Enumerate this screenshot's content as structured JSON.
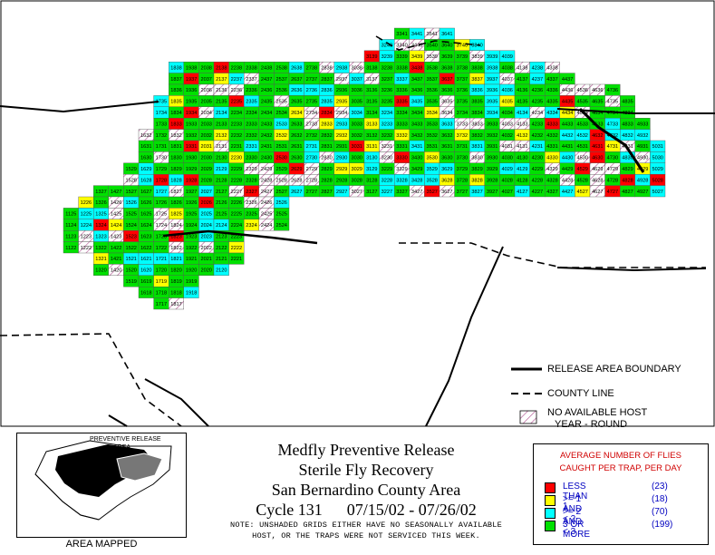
{
  "map_title": {
    "line1": "Medfly Preventive Release",
    "line2": "Sterile Fly Recovery",
    "line3": "San Bernardino County Area",
    "cycle": "Cycle 131",
    "dates": "07/15/02 - 07/26/02"
  },
  "note": {
    "line1": "NOTE: UNSHADED GRIDS EITHER HAVE NO SEASONALLY AVAILABLE",
    "line2": "HOST, OR THE TRAPS WERE NOT SERVICED THIS WEEK."
  },
  "line_key": {
    "release_boundary": "RELEASE AREA BOUNDARY",
    "county_line": "COUNTY LINE",
    "no_host_line1": "NO AVAILABLE HOST",
    "no_host_line2": "YEAR - ROUND"
  },
  "legend": {
    "title_line1": "AVERAGE NUMBER OF FLIES",
    "title_line2": "CAUGHT PER TRAP, PER DAY",
    "items": [
      {
        "label": "LESS THAN 1",
        "count": "(23)",
        "color": "#ff0000"
      },
      {
        "label": ">= 1 AND < 2",
        "count": "(18)",
        "color": "#ffff00"
      },
      {
        "label": ">= 2 AND < 3",
        "count": "(70)",
        "color": "#00ffff"
      },
      {
        "label": "3 OR MORE",
        "count": "(199)",
        "color": "#00e000"
      }
    ]
  },
  "inset": {
    "caption": "AREA MAPPED",
    "release_area_label_line1": "PREVENTIVE RELEASE",
    "release_area_label_line2": "AREA"
  },
  "colors": {
    "red": "#ff0000",
    "yellow": "#ffff00",
    "cyan": "#00ffff",
    "green": "#00e000",
    "hatch": "#b05090"
  },
  "grid": {
    "min_col": 11,
    "max_col": 50,
    "min_row": 17,
    "max_row": 41,
    "rows": [
      {
        "row": 41,
        "c0": 33,
        "c1": 36
      },
      {
        "row": 40,
        "c0": 32,
        "c1": 38
      },
      {
        "row": 39,
        "c0": 31,
        "c1": 40
      },
      {
        "row": 38,
        "c0": 18,
        "c1": 43
      },
      {
        "row": 37,
        "c0": 18,
        "c1": 44
      },
      {
        "row": 36,
        "c0": 18,
        "c1": 47
      },
      {
        "row": 35,
        "c0": 17,
        "c1": 48
      },
      {
        "row": 34,
        "c0": 17,
        "c1": 48
      },
      {
        "row": 33,
        "c0": 17,
        "c1": 49
      },
      {
        "row": 32,
        "c0": 16,
        "c1": 49
      },
      {
        "row": 31,
        "c0": 16,
        "c1": 50
      },
      {
        "row": 30,
        "c0": 16,
        "c1": 50
      },
      {
        "row": 29,
        "c0": 15,
        "c1": 50
      },
      {
        "row": 28,
        "c0": 15,
        "c1": 50
      },
      {
        "row": 27,
        "c0": 13,
        "c1": 50
      },
      {
        "row": 26,
        "c0": 12,
        "c1": 25
      },
      {
        "row": 25,
        "c0": 11,
        "c1": 25
      },
      {
        "row": 24,
        "c0": 11,
        "c1": 25
      },
      {
        "row": 23,
        "c0": 11,
        "c1": 22
      },
      {
        "row": 22,
        "c0": 11,
        "c1": 22
      },
      {
        "row": 21,
        "c0": 13,
        "c1": 22
      },
      {
        "row": 20,
        "c0": 13,
        "c1": 21
      },
      {
        "row": 19,
        "c0": 15,
        "c1": 19
      },
      {
        "row": 18,
        "c0": 16,
        "c1": 19
      },
      {
        "row": 17,
        "c0": 17,
        "c1": 18
      }
    ]
  }
}
